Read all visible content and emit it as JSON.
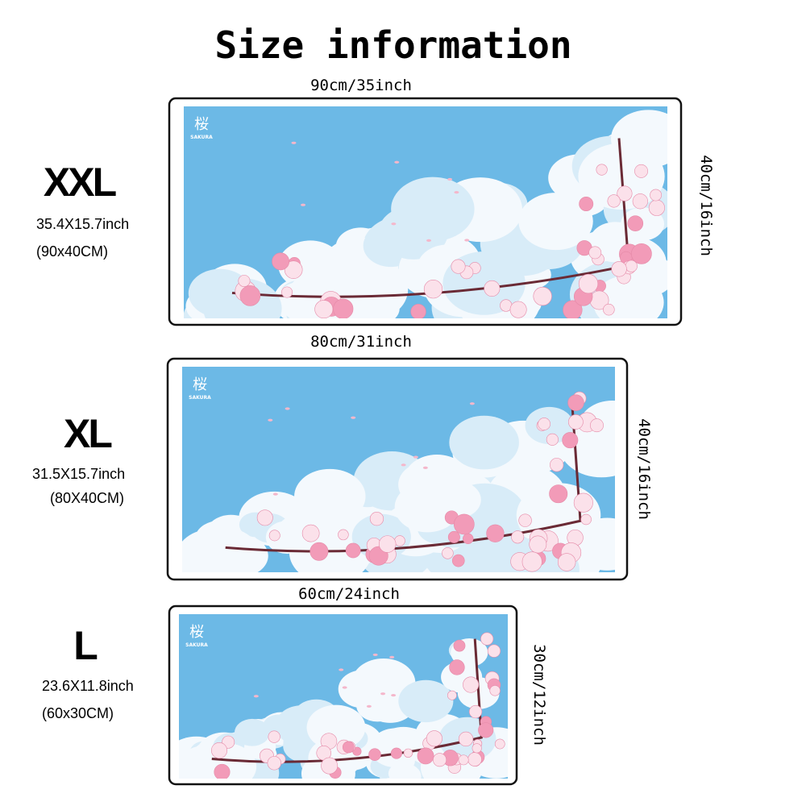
{
  "title": "Size information",
  "logo": {
    "mark": "桜",
    "text": "SAKURA"
  },
  "sizes": [
    {
      "name": "XXL",
      "inch": "35.4X15.7inch",
      "cm": "(90x40CM)",
      "width": "90cm/35inch",
      "height": "40cm/16inch"
    },
    {
      "name": "XL",
      "inch": "31.5X15.7inch",
      "cm": "(80X40CM)",
      "width": "80cm/31inch",
      "height": "40cm/16inch"
    },
    {
      "name": "L",
      "inch": "23.6X11.8inch",
      "cm": "(60x30CM)",
      "width": "60cm/24inch",
      "height": "30cm/12inch"
    }
  ]
}
